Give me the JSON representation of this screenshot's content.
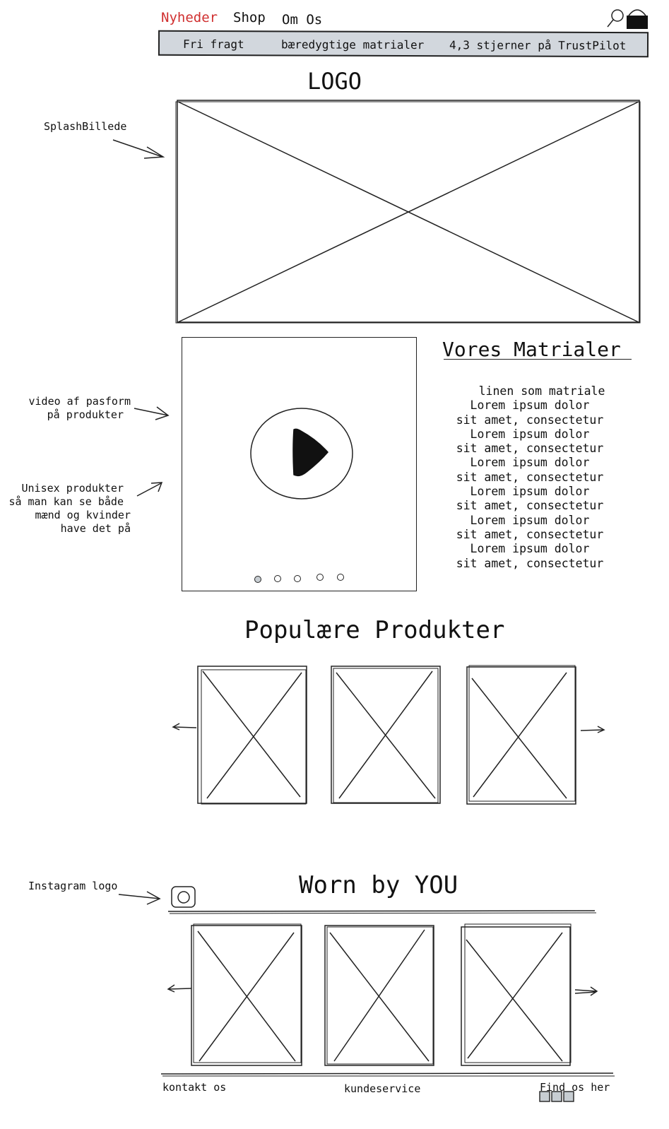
{
  "nav": {
    "items": [
      {
        "label": "Nyheder",
        "color": "#d03030"
      },
      {
        "label": "Shop"
      },
      {
        "label": "Om Os"
      }
    ],
    "icons": [
      "search-icon",
      "bag-icon"
    ]
  },
  "banner": {
    "items": [
      "Fri fragt",
      "bæredygtige matrialer",
      "4,3 stjerner på TrustPilot"
    ],
    "background": "#d2d7dd"
  },
  "logo": "LOGO",
  "annotations": {
    "splash": "SplashBillede",
    "video": [
      "video af pasform",
      "på produkter"
    ],
    "unisex": [
      "Unisex produkter",
      "så man kan se både",
      "mænd og kvinder",
      "have det på"
    ],
    "instagram": "Instagram logo"
  },
  "materials": {
    "title": "Vores Matrialer",
    "lines": [
      "linen som matriale",
      "Lorem ipsum dolor",
      "sit amet, consectetur",
      "Lorem ipsum dolor",
      "sit amet, consectetur",
      "Lorem ipsum dolor",
      "sit amet, consectetur",
      "Lorem ipsum dolor",
      "sit amet, consectetur",
      "Lorem ipsum dolor",
      "sit amet, consectetur",
      "Lorem ipsum dolor",
      "sit amet, consectetur"
    ]
  },
  "video": {
    "icon": "play-icon",
    "slides": 5,
    "active_slide": 1
  },
  "popular": {
    "title": "Populære Produkter",
    "product_count": 3
  },
  "worn": {
    "title": "Worn by YOU",
    "photo_count": 3,
    "icon": "instagram-icon"
  },
  "footer": {
    "links": [
      "kontakt os",
      "kundeservice",
      "Find os her"
    ],
    "social_icons": 3
  }
}
